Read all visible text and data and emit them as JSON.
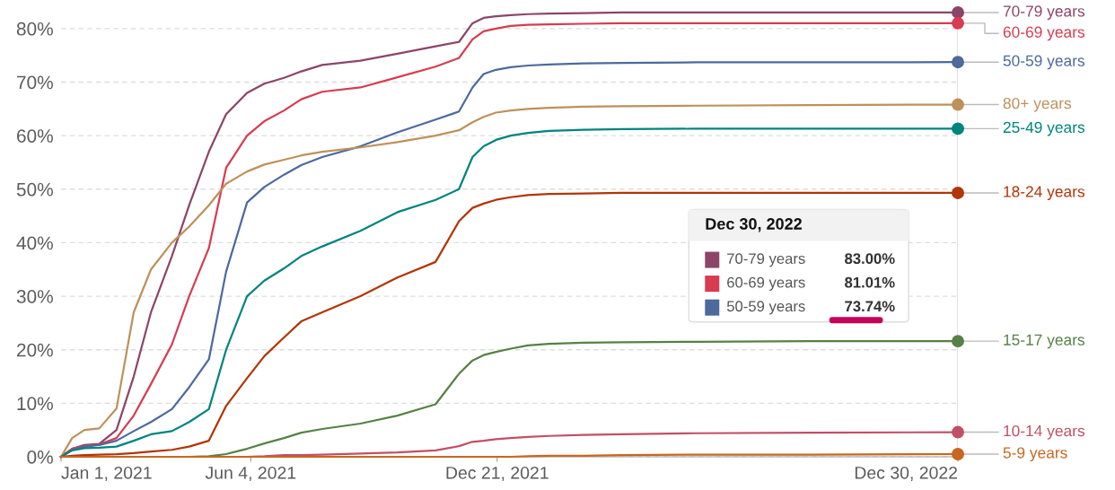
{
  "chart_data": {
    "type": "line",
    "x": [
      "2021-01-01",
      "2021-01-10",
      "2021-01-20",
      "2021-02-01",
      "2021-02-15",
      "2021-03-01",
      "2021-03-15",
      "2021-04-01",
      "2021-04-15",
      "2021-05-01",
      "2021-05-15",
      "2021-06-01",
      "2021-06-15",
      "2021-07-01",
      "2021-07-15",
      "2021-08-01",
      "2021-09-01",
      "2021-10-01",
      "2021-11-01",
      "2021-11-20",
      "2021-12-01",
      "2021-12-10",
      "2021-12-20",
      "2022-01-01",
      "2022-01-15",
      "2022-02-01",
      "2022-03-01",
      "2022-04-01",
      "2022-06-01",
      "2022-09-01",
      "2022-12-30"
    ],
    "series": [
      {
        "name": "70-79 years",
        "color": "#8c4569",
        "values": [
          0,
          1.5,
          2.2,
          2.4,
          5,
          15,
          27,
          37.5,
          47,
          57,
          64,
          68,
          69.7,
          70.8,
          72,
          73.2,
          74,
          75.3,
          76.7,
          77.5,
          81,
          82,
          82.3,
          82.5,
          82.7,
          82.8,
          82.9,
          83,
          83,
          83,
          83
        ]
      },
      {
        "name": "60-69 years",
        "color": "#d73c50",
        "values": [
          0,
          1.5,
          2,
          2.3,
          3.5,
          7.7,
          13.6,
          21,
          30,
          39,
          54,
          60,
          62.7,
          64.7,
          66.8,
          68.2,
          69,
          70.9,
          72.9,
          74.5,
          78,
          79.5,
          80,
          80.5,
          80.7,
          80.8,
          80.9,
          81,
          81,
          81,
          81.01
        ]
      },
      {
        "name": "50-59 years",
        "color": "#4c6a9c",
        "values": [
          0,
          1.3,
          1.9,
          2.2,
          3,
          4.8,
          6.5,
          8.9,
          13,
          18.2,
          34.6,
          47.5,
          50.4,
          52.7,
          54.5,
          56,
          58,
          60.6,
          63,
          64.5,
          69,
          71.5,
          72.3,
          72.8,
          73.1,
          73.3,
          73.5,
          73.6,
          73.7,
          73.7,
          73.74
        ]
      },
      {
        "name": "80+ years",
        "color": "#be915a",
        "values": [
          0,
          3.5,
          5,
          5.3,
          9,
          27,
          35,
          40,
          43,
          47,
          51,
          53.3,
          54.6,
          55.5,
          56.3,
          57,
          57.8,
          58.8,
          60,
          61,
          62.5,
          63.5,
          64.3,
          64.7,
          65,
          65.2,
          65.4,
          65.5,
          65.6,
          65.7,
          65.8
        ]
      },
      {
        "name": "25-49 years",
        "color": "#00847e",
        "values": [
          0,
          1.2,
          1.6,
          1.7,
          1.9,
          3,
          4.2,
          4.8,
          6.5,
          8.9,
          20,
          30,
          32.9,
          35.2,
          37.5,
          39.3,
          42.2,
          45.7,
          48,
          50,
          56,
          58,
          59.2,
          60,
          60.5,
          60.9,
          61.1,
          61.2,
          61.3,
          61.3,
          61.3
        ]
      },
      {
        "name": "18-24 years",
        "color": "#b13507",
        "values": [
          0,
          0.2,
          0.3,
          0.4,
          0.5,
          0.7,
          1,
          1.3,
          1.9,
          3,
          9.5,
          14.7,
          18.8,
          22.3,
          25.3,
          27,
          30,
          33.5,
          36.4,
          44,
          46.5,
          47.3,
          48,
          48.5,
          48.9,
          49.1,
          49.2,
          49.3,
          49.3,
          49.3,
          49.3
        ]
      },
      {
        "name": "15-17 years",
        "color": "#578145",
        "values": [
          0,
          0,
          0,
          0,
          0,
          0,
          0,
          0,
          0,
          0.1,
          0.5,
          1.5,
          2.5,
          3.5,
          4.5,
          5.2,
          6.2,
          7.7,
          9.8,
          15.5,
          18,
          19,
          19.6,
          20.2,
          20.8,
          21.1,
          21.3,
          21.4,
          21.5,
          21.6,
          21.6
        ]
      },
      {
        "name": "10-14 years",
        "color": "#c15065",
        "values": [
          0,
          0,
          0,
          0,
          0,
          0,
          0,
          0,
          0,
          0,
          0,
          0,
          0.1,
          0.3,
          0.3,
          0.4,
          0.6,
          0.8,
          1.2,
          2,
          2.8,
          3,
          3.3,
          3.5,
          3.7,
          3.9,
          4.1,
          4.2,
          4.4,
          4.5,
          4.6
        ]
      },
      {
        "name": "5-9 years",
        "color": "#c9661f",
        "values": [
          0,
          0,
          0,
          0,
          0,
          0,
          0,
          0,
          0,
          0,
          0,
          0,
          0,
          0,
          0,
          0,
          0,
          0,
          0,
          0,
          0,
          0,
          0,
          0,
          0.1,
          0.2,
          0.2,
          0.3,
          0.4,
          0.4,
          0.5
        ]
      }
    ],
    "ylim": [
      0,
      84
    ],
    "yticks": [
      {
        "value": 0,
        "label": "0%"
      },
      {
        "value": 10,
        "label": "10%"
      },
      {
        "value": 20,
        "label": "20%"
      },
      {
        "value": 30,
        "label": "30%"
      },
      {
        "value": 40,
        "label": "40%"
      },
      {
        "value": 50,
        "label": "50%"
      },
      {
        "value": 60,
        "label": "60%"
      },
      {
        "value": 70,
        "label": "70%"
      },
      {
        "value": 80,
        "label": "80%"
      }
    ],
    "xlim": [
      "2021-01-01",
      "2022-12-30"
    ],
    "xticks": [
      {
        "value": "2021-01-01",
        "label": "Jan 1, 2021"
      },
      {
        "value": "2021-06-04",
        "label": "Jun 4, 2021"
      },
      {
        "value": "2021-12-21",
        "label": "Dec 21, 2021"
      },
      {
        "value": "2022-12-30",
        "label": "Dec 30, 2022"
      }
    ],
    "grid": "y",
    "line_style": "solid",
    "ref_lines": [
      {
        "axis": "x",
        "value": "2022-12-30",
        "label": null,
        "color": "#dddddd"
      }
    ],
    "annotations": [
      "Dec 30, 2022",
      "70-79 years",
      "83.00%",
      "60-69 years",
      "81.01%",
      "50-59 years",
      "73.74%"
    ]
  }
}
